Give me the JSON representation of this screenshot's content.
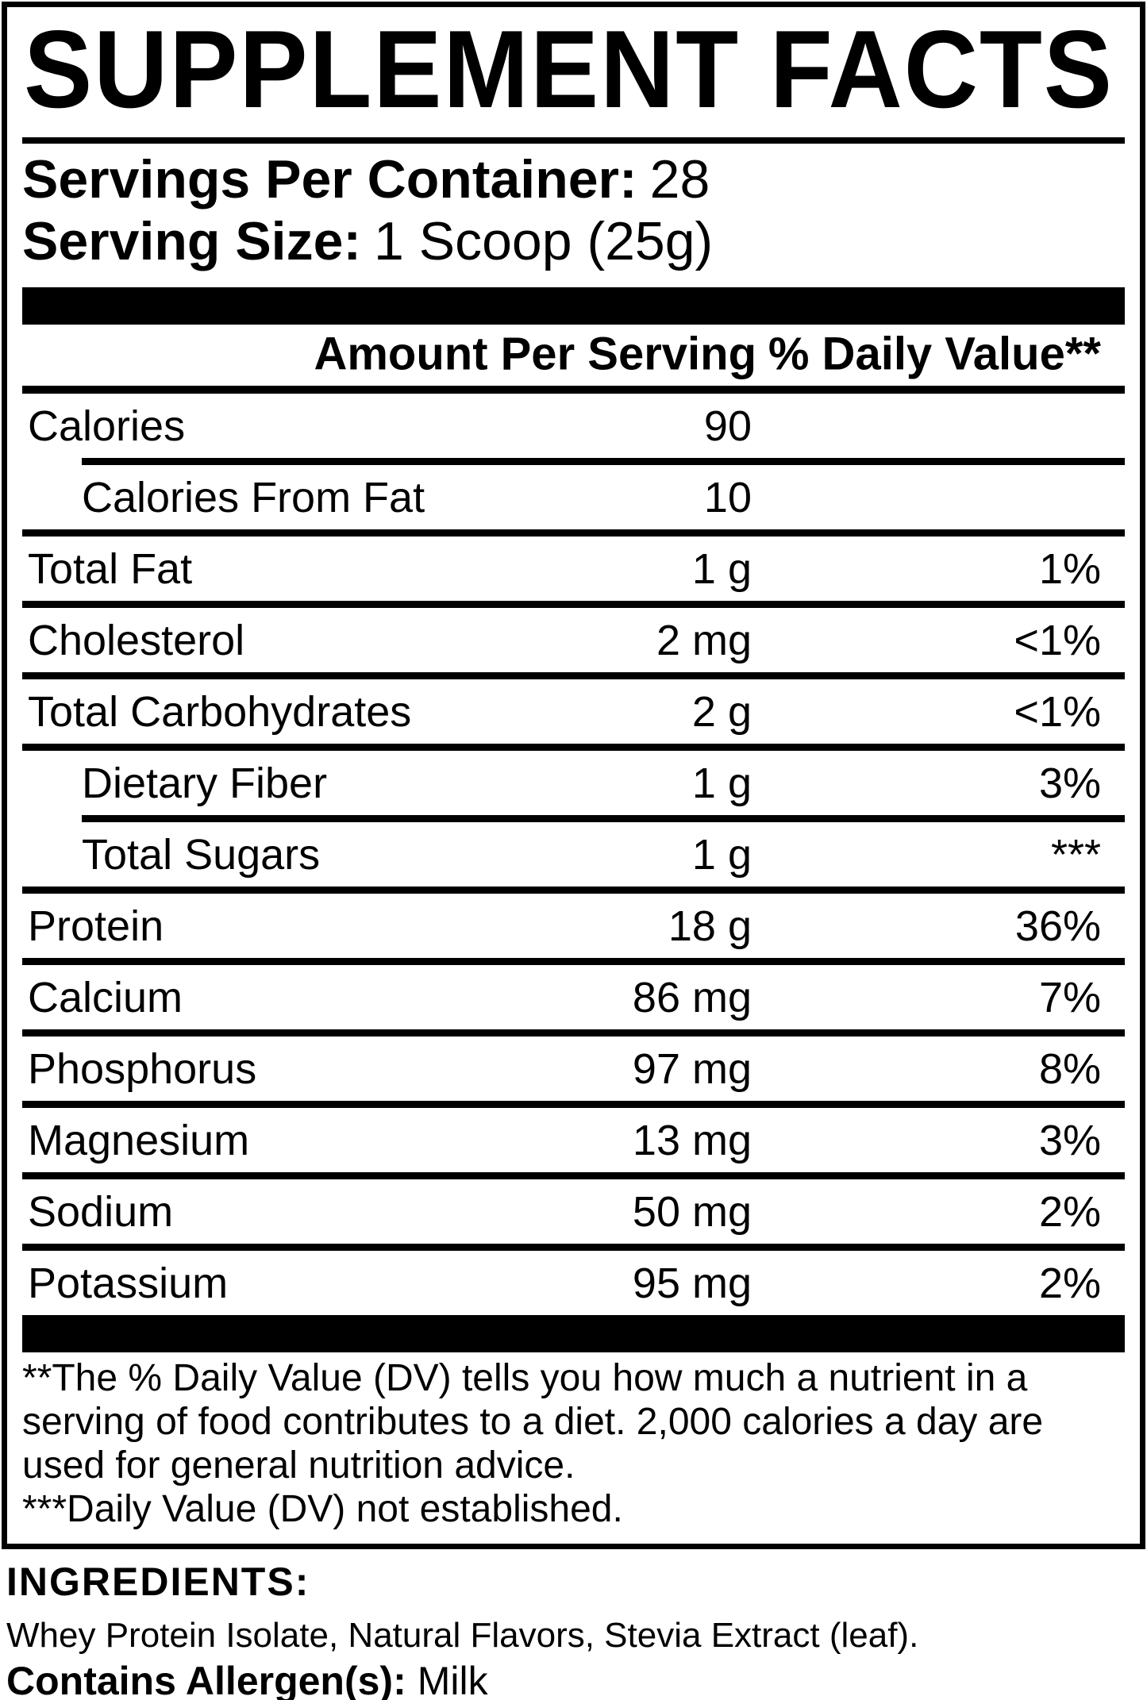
{
  "label": {
    "title": "SUPPLEMENT FACTS",
    "servings_per_container": {
      "label": "Servings Per Container:",
      "value": "28"
    },
    "serving_size": {
      "label": "Serving Size:",
      "value": "1 Scoop (25g)"
    },
    "columns": {
      "amount": "Amount Per Serving",
      "daily_value": "% Daily Value**"
    },
    "rows": [
      {
        "name": "Calories",
        "amount": "90",
        "dv": "",
        "indent": false,
        "divider_after": "indent"
      },
      {
        "name": "Calories From Fat",
        "amount": "10",
        "dv": "",
        "indent": true,
        "divider_after": "full"
      },
      {
        "name": "Total Fat",
        "amount": "1 g",
        "dv": "1%",
        "indent": false,
        "divider_after": "full"
      },
      {
        "name": "Cholesterol",
        "amount": "2 mg",
        "dv": "<1%",
        "indent": false,
        "divider_after": "full"
      },
      {
        "name": "Total Carbohydrates",
        "amount": "2 g",
        "dv": "<1%",
        "indent": false,
        "divider_after": "full"
      },
      {
        "name": "Dietary Fiber",
        "amount": "1 g",
        "dv": "3%",
        "indent": true,
        "divider_after": "indent"
      },
      {
        "name": "Total Sugars",
        "amount": "1 g",
        "dv": "***",
        "indent": true,
        "divider_after": "full"
      },
      {
        "name": "Protein",
        "amount": "18 g",
        "dv": "36%",
        "indent": false,
        "divider_after": "full"
      },
      {
        "name": "Calcium",
        "amount": "86 mg",
        "dv": "7%",
        "indent": false,
        "divider_after": "full"
      },
      {
        "name": "Phosphorus",
        "amount": "97 mg",
        "dv": "8%",
        "indent": false,
        "divider_after": "full"
      },
      {
        "name": "Magnesium",
        "amount": "13 mg",
        "dv": "3%",
        "indent": false,
        "divider_after": "full"
      },
      {
        "name": "Sodium",
        "amount": "50 mg",
        "dv": "2%",
        "indent": false,
        "divider_after": "full"
      },
      {
        "name": "Potassium",
        "amount": "95 mg",
        "dv": "2%",
        "indent": false,
        "divider_after": "none"
      }
    ],
    "footnotes": [
      "**The % Daily Value (DV) tells you how much a nutrient in a serving of food contributes to a diet. 2,000 calories a day are used for general nutrition advice.",
      "***Daily Value (DV) not established."
    ]
  },
  "ingredients": {
    "heading": "INGREDIENTS:",
    "list": "Whey Protein Isolate, Natural Flavors, Stevia Extract (leaf).",
    "allergen_label": "Contains Allergen(s):",
    "allergen_value": "Milk"
  },
  "colors": {
    "ink": "#000000",
    "paper": "#ffffff"
  }
}
